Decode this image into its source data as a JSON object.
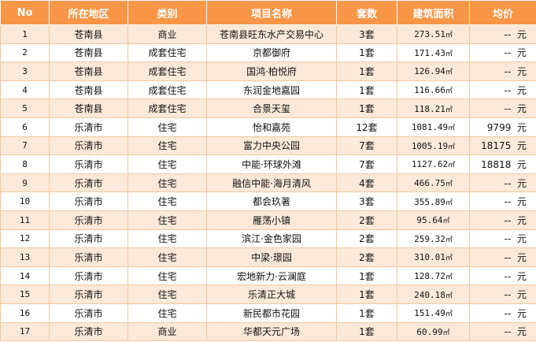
{
  "headers": [
    "No",
    "所在地区",
    "类别",
    "项目名称",
    "套数",
    "建筑面积",
    "均价"
  ],
  "area_unit": "㎡",
  "price_unit": "元",
  "rows": [
    {
      "no": "1",
      "region": "苍南县",
      "category": "商业",
      "project": "苍南县旺东水产交易中心",
      "units": "3套",
      "area": "273.51",
      "price": "--"
    },
    {
      "no": "2",
      "region": "苍南县",
      "category": "成套住宅",
      "project": "京都御府",
      "units": "1套",
      "area": "171.43",
      "price": "--"
    },
    {
      "no": "3",
      "region": "苍南县",
      "category": "成套住宅",
      "project": "国鸿·柏悦府",
      "units": "1套",
      "area": "126.94",
      "price": "--"
    },
    {
      "no": "4",
      "region": "苍南县",
      "category": "成套住宅",
      "project": "东润金地嘉园",
      "units": "1套",
      "area": "116.66",
      "price": "--"
    },
    {
      "no": "5",
      "region": "苍南县",
      "category": "成套住宅",
      "project": "合景天玺",
      "units": "1套",
      "area": "118.21",
      "price": "--"
    },
    {
      "no": "6",
      "region": "乐清市",
      "category": "住宅",
      "project": "怡和嘉苑",
      "units": "12套",
      "area": "1081.49",
      "price": "9799"
    },
    {
      "no": "7",
      "region": "乐清市",
      "category": "住宅",
      "project": "富力中央公园",
      "units": "7套",
      "area": "1005.19",
      "price": "18175"
    },
    {
      "no": "8",
      "region": "乐清市",
      "category": "住宅",
      "project": "中能·环球外滩",
      "units": "7套",
      "area": "1127.62",
      "price": "18818"
    },
    {
      "no": "9",
      "region": "乐清市",
      "category": "住宅",
      "project": "融信中能·海月清风",
      "units": "4套",
      "area": "466.75",
      "price": "--"
    },
    {
      "no": "10",
      "region": "乐清市",
      "category": "住宅",
      "project": "都会玖著",
      "units": "3套",
      "area": "355.89",
      "price": "--"
    },
    {
      "no": "11",
      "region": "乐清市",
      "category": "住宅",
      "project": "雁荡小镇",
      "units": "2套",
      "area": "95.64",
      "price": "--"
    },
    {
      "no": "12",
      "region": "乐清市",
      "category": "住宅",
      "project": "滨江·金色家园",
      "units": "2套",
      "area": "259.32",
      "price": "--"
    },
    {
      "no": "13",
      "region": "乐清市",
      "category": "住宅",
      "project": "中梁·璟园",
      "units": "2套",
      "area": "310.01",
      "price": "--"
    },
    {
      "no": "14",
      "region": "乐清市",
      "category": "住宅",
      "project": "宏地新力·云澜庭",
      "units": "1套",
      "area": "128.72",
      "price": "--"
    },
    {
      "no": "15",
      "region": "乐清市",
      "category": "住宅",
      "project": "乐清正大城",
      "units": "1套",
      "area": "240.18",
      "price": "--"
    },
    {
      "no": "16",
      "region": "乐清市",
      "category": "住宅",
      "project": "新民都市花园",
      "units": "1套",
      "area": "151.49",
      "price": "--"
    },
    {
      "no": "17",
      "region": "乐清市",
      "category": "商业",
      "project": "华都天元广场",
      "units": "1套",
      "area": "60.99",
      "price": "--"
    }
  ]
}
